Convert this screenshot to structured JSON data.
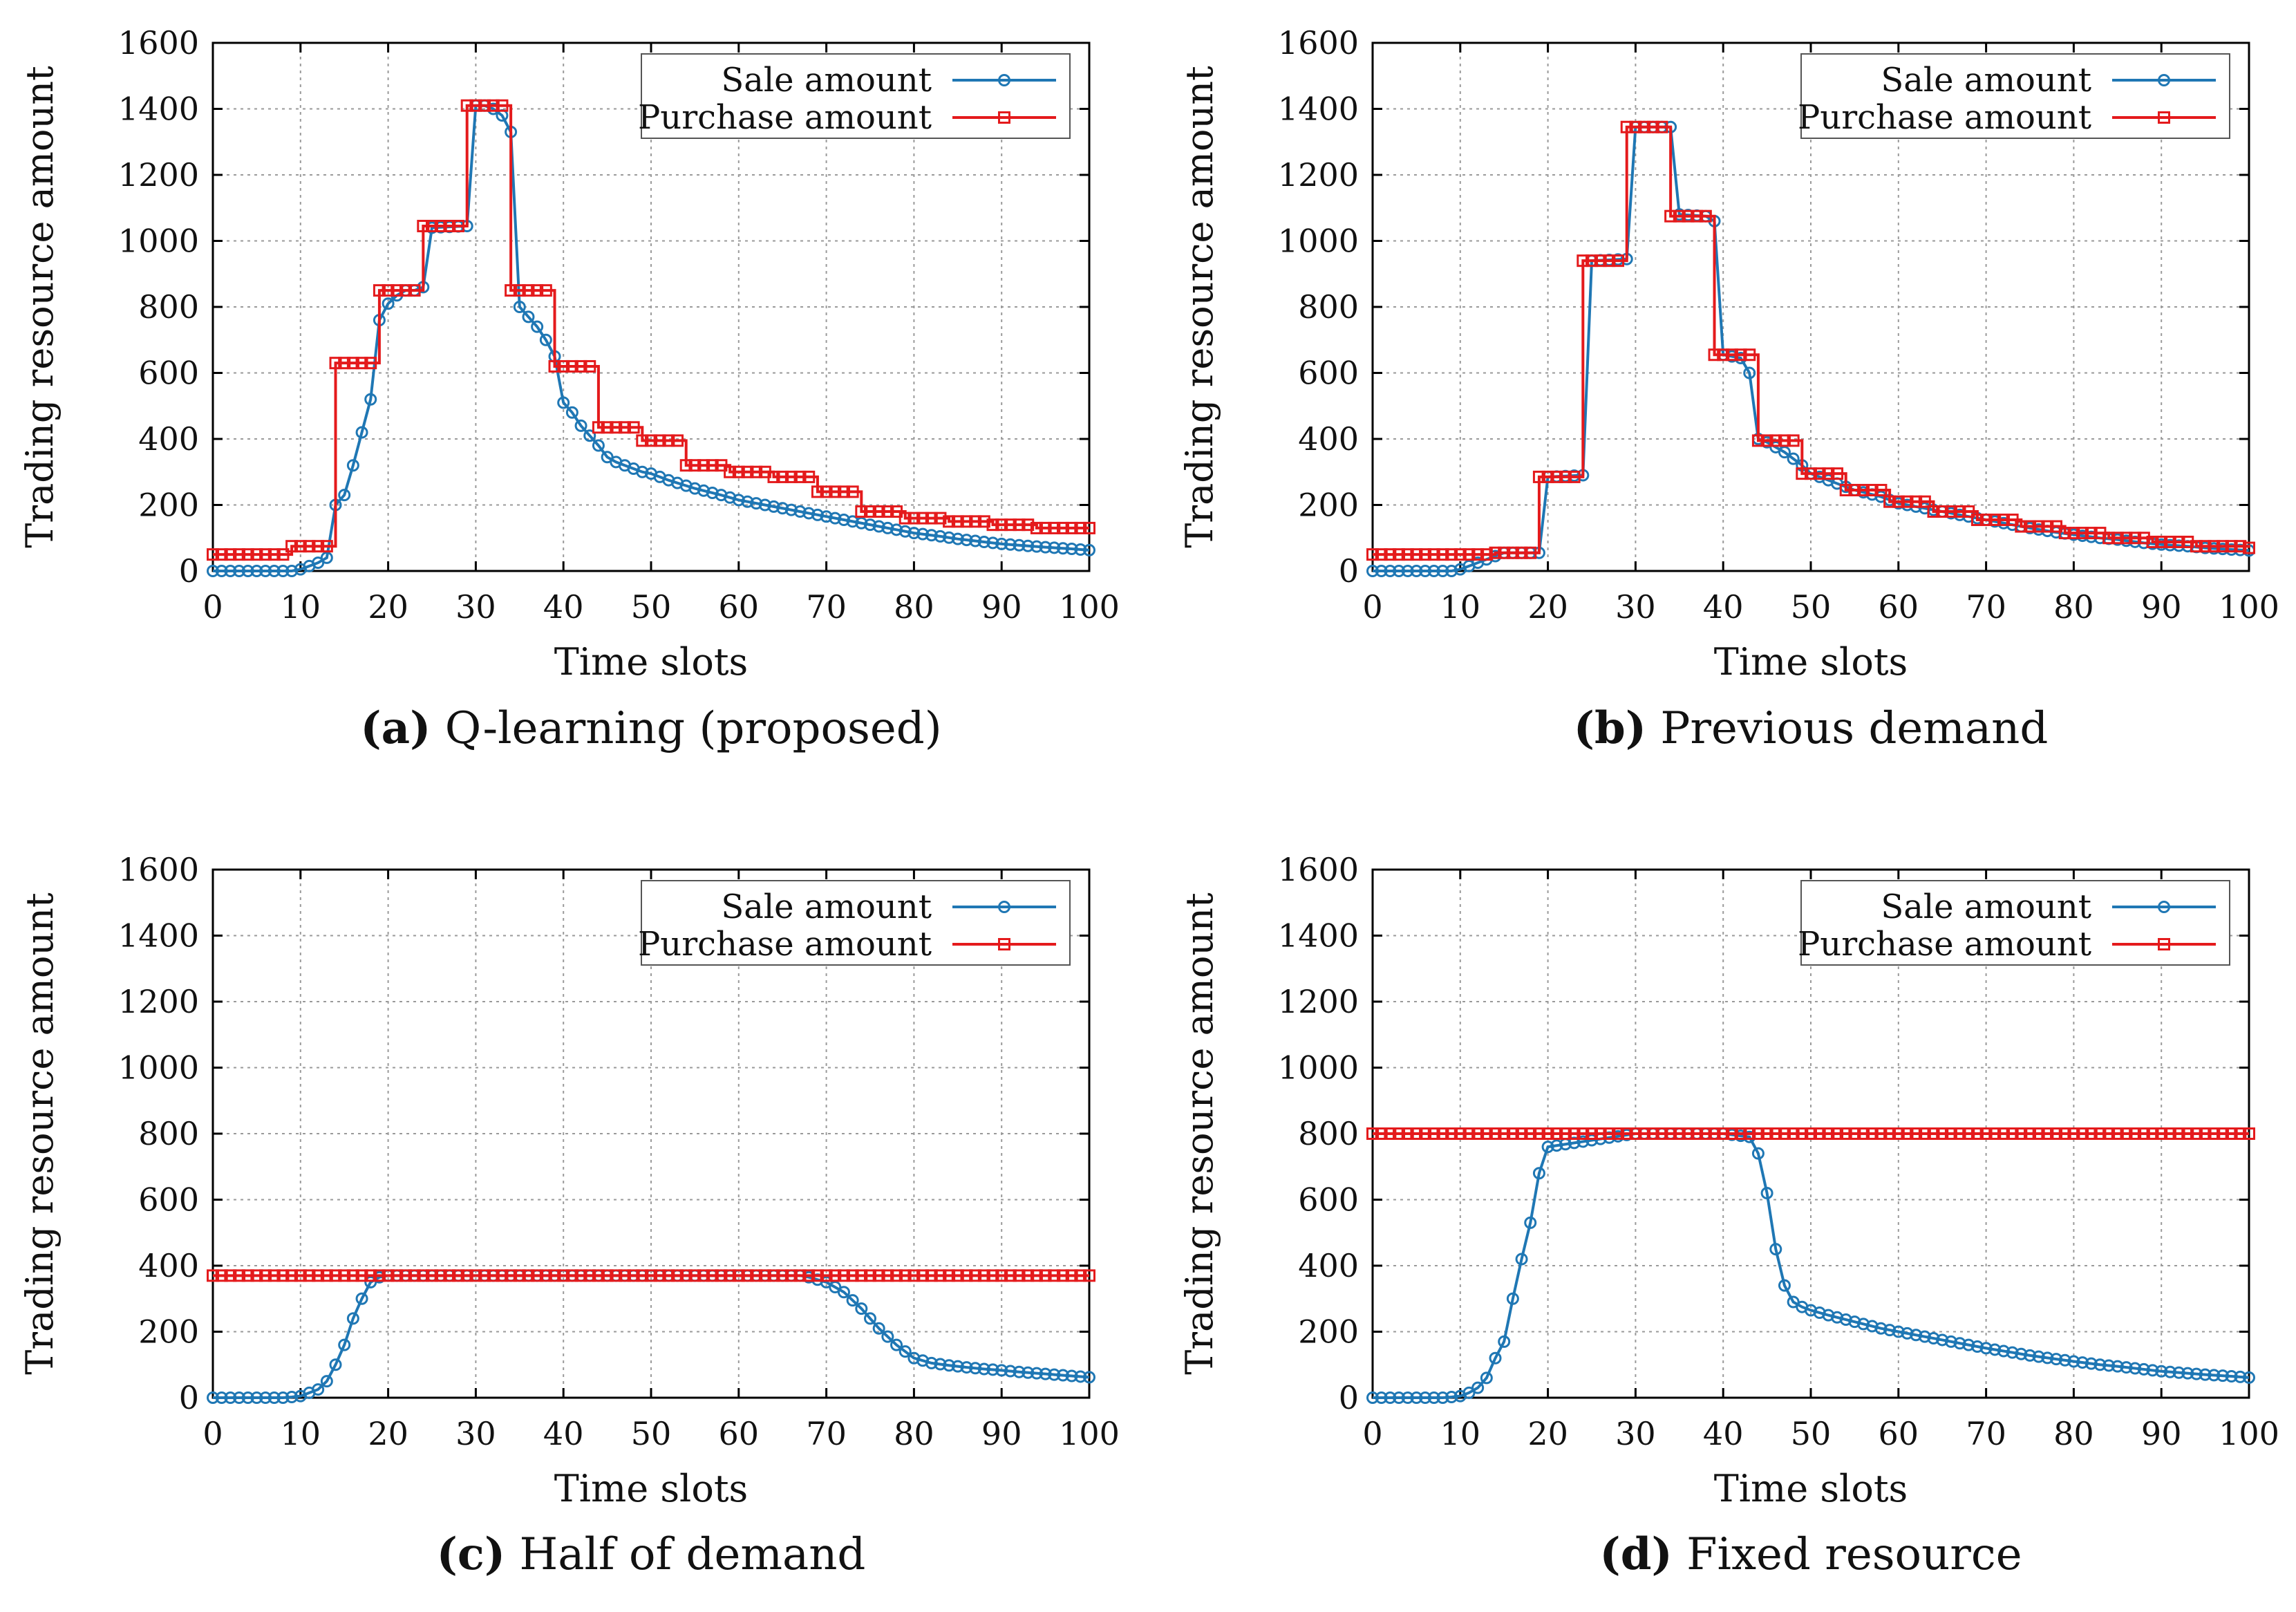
{
  "colors": {
    "sale": "#1f77b4",
    "purchase": "#e41a1c",
    "grid": "#9a9a9a",
    "axis": "#000000"
  },
  "chart_data": [
    {
      "type": "line",
      "caption_label": "(a)",
      "caption_text": "Q-learning (proposed)",
      "xlabel": "Time slots",
      "ylabel": "Trading resource amount",
      "xlim": [
        0,
        100
      ],
      "ylim": [
        0,
        1600
      ],
      "xticks": [
        "0",
        "10",
        "20",
        "30",
        "40",
        "50",
        "60",
        "70",
        "80",
        "90",
        "100"
      ],
      "yticks": [
        "0",
        "200",
        "400",
        "600",
        "800",
        "1000",
        "1200",
        "1400",
        "1600"
      ],
      "grid": true,
      "legend_position": "top-right",
      "series": [
        {
          "name": "Sale amount",
          "marker": "circle",
          "x": [
            0,
            5,
            9,
            10,
            11,
            12,
            13,
            14,
            15,
            16,
            17,
            18,
            19,
            20,
            21,
            22,
            23,
            24,
            25,
            29,
            30,
            31,
            32,
            33,
            34,
            35,
            36,
            37,
            38,
            39,
            40,
            41,
            42,
            43,
            44,
            45,
            46,
            47,
            48,
            49,
            50,
            52,
            55,
            58,
            60,
            63,
            65,
            68,
            70,
            73,
            75,
            78,
            80,
            83,
            85,
            88,
            90,
            93,
            95,
            98,
            100
          ],
          "y": [
            0,
            0,
            0,
            5,
            15,
            25,
            40,
            200,
            230,
            320,
            420,
            520,
            760,
            810,
            835,
            850,
            850,
            860,
            1040,
            1045,
            1410,
            1410,
            1400,
            1380,
            1330,
            800,
            770,
            740,
            700,
            650,
            510,
            480,
            440,
            410,
            380,
            345,
            330,
            320,
            310,
            300,
            295,
            275,
            250,
            230,
            215,
            200,
            190,
            175,
            165,
            150,
            140,
            125,
            115,
            105,
            97,
            88,
            82,
            76,
            72,
            67,
            63
          ]
        },
        {
          "name": "Purchase amount",
          "marker": "square",
          "step": true,
          "x": [
            0,
            9,
            14,
            19,
            24,
            29,
            34,
            39,
            44,
            49,
            54,
            59,
            64,
            69,
            74,
            79,
            84,
            89,
            94,
            100
          ],
          "y": [
            50,
            75,
            630,
            850,
            1045,
            1410,
            850,
            620,
            435,
            395,
            320,
            300,
            285,
            240,
            180,
            160,
            150,
            140,
            130,
            130
          ]
        }
      ]
    },
    {
      "type": "line",
      "caption_label": "(b)",
      "caption_text": "Previous demand",
      "xlabel": "Time slots",
      "ylabel": "Trading resource amount",
      "xlim": [
        0,
        100
      ],
      "ylim": [
        0,
        1600
      ],
      "xticks": [
        "0",
        "10",
        "20",
        "30",
        "40",
        "50",
        "60",
        "70",
        "80",
        "90",
        "100"
      ],
      "yticks": [
        "0",
        "200",
        "400",
        "600",
        "800",
        "1000",
        "1200",
        "1400",
        "1600"
      ],
      "grid": true,
      "legend_position": "top-right",
      "series": [
        {
          "name": "Sale amount",
          "marker": "circle",
          "x": [
            0,
            5,
            9,
            10,
            11,
            12,
            13,
            14,
            15,
            19,
            20,
            24,
            25,
            29,
            30,
            34,
            35,
            38,
            39,
            40,
            42,
            43,
            44,
            45,
            46,
            47,
            48,
            49,
            50,
            52,
            55,
            58,
            60,
            63,
            65,
            68,
            70,
            73,
            75,
            78,
            80,
            83,
            85,
            88,
            90,
            93,
            95,
            98,
            100
          ],
          "y": [
            0,
            0,
            0,
            5,
            15,
            25,
            35,
            45,
            55,
            55,
            285,
            290,
            940,
            945,
            1345,
            1345,
            1080,
            1075,
            1060,
            655,
            645,
            600,
            400,
            390,
            375,
            360,
            340,
            320,
            295,
            275,
            245,
            225,
            205,
            190,
            180,
            165,
            155,
            140,
            130,
            117,
            110,
            100,
            95,
            85,
            80,
            75,
            70,
            65,
            62
          ]
        },
        {
          "name": "Purchase amount",
          "marker": "square",
          "step": true,
          "x": [
            0,
            14,
            19,
            24,
            29,
            34,
            39,
            44,
            49,
            54,
            59,
            64,
            69,
            74,
            79,
            84,
            89,
            94,
            100
          ],
          "y": [
            50,
            55,
            285,
            940,
            1345,
            1075,
            655,
            395,
            295,
            245,
            210,
            180,
            155,
            135,
            115,
            100,
            88,
            75,
            70
          ]
        }
      ]
    },
    {
      "type": "line",
      "caption_label": "(c)",
      "caption_text": "Half of demand",
      "xlabel": "Time slots",
      "ylabel": "Trading resource amount",
      "xlim": [
        0,
        100
      ],
      "ylim": [
        0,
        1600
      ],
      "xticks": [
        "0",
        "10",
        "20",
        "30",
        "40",
        "50",
        "60",
        "70",
        "80",
        "90",
        "100"
      ],
      "yticks": [
        "0",
        "200",
        "400",
        "600",
        "800",
        "1000",
        "1200",
        "1400",
        "1600"
      ],
      "grid": true,
      "legend_position": "top-right",
      "series": [
        {
          "name": "Sale amount",
          "marker": "circle",
          "x": [
            0,
            5,
            8,
            9,
            10,
            11,
            12,
            13,
            14,
            15,
            16,
            17,
            18,
            19,
            20,
            30,
            40,
            50,
            60,
            67,
            68,
            70,
            72,
            74,
            76,
            78,
            80,
            82,
            84,
            86,
            88,
            90,
            92,
            94,
            96,
            98,
            100
          ],
          "y": [
            0,
            0,
            0,
            2,
            5,
            15,
            25,
            50,
            100,
            160,
            240,
            300,
            350,
            365,
            370,
            370,
            370,
            370,
            370,
            370,
            365,
            350,
            320,
            270,
            210,
            160,
            120,
            105,
            98,
            92,
            87,
            83,
            78,
            74,
            70,
            66,
            62
          ]
        },
        {
          "name": "Purchase amount",
          "marker": "square",
          "x": [
            0,
            100
          ],
          "y": [
            370,
            370
          ]
        }
      ]
    },
    {
      "type": "line",
      "caption_label": "(d)",
      "caption_text": "Fixed resource",
      "xlabel": "Time slots",
      "ylabel": "Trading resource amount",
      "xlim": [
        0,
        100
      ],
      "ylim": [
        0,
        1600
      ],
      "xticks": [
        "0",
        "10",
        "20",
        "30",
        "40",
        "50",
        "60",
        "70",
        "80",
        "90",
        "100"
      ],
      "yticks": [
        "0",
        "200",
        "400",
        "600",
        "800",
        "1000",
        "1200",
        "1400",
        "1600"
      ],
      "grid": true,
      "legend_position": "top-right",
      "series": [
        {
          "name": "Sale amount",
          "marker": "circle",
          "x": [
            0,
            5,
            8,
            9,
            10,
            11,
            12,
            13,
            14,
            15,
            16,
            17,
            18,
            19,
            20,
            30,
            40,
            43,
            44,
            45,
            46,
            47,
            48,
            49,
            50,
            52,
            55,
            58,
            60,
            63,
            65,
            68,
            70,
            73,
            75,
            78,
            80,
            83,
            85,
            88,
            90,
            93,
            95,
            98,
            100
          ],
          "y": [
            0,
            0,
            0,
            2,
            5,
            15,
            30,
            60,
            120,
            170,
            300,
            420,
            530,
            680,
            760,
            800,
            800,
            790,
            740,
            620,
            450,
            340,
            290,
            275,
            265,
            250,
            230,
            210,
            200,
            185,
            175,
            160,
            150,
            137,
            128,
            117,
            110,
            100,
            95,
            86,
            80,
            74,
            70,
            65,
            61
          ]
        },
        {
          "name": "Purchase amount",
          "marker": "square",
          "x": [
            0,
            100
          ],
          "y": [
            800,
            800
          ]
        }
      ]
    }
  ]
}
